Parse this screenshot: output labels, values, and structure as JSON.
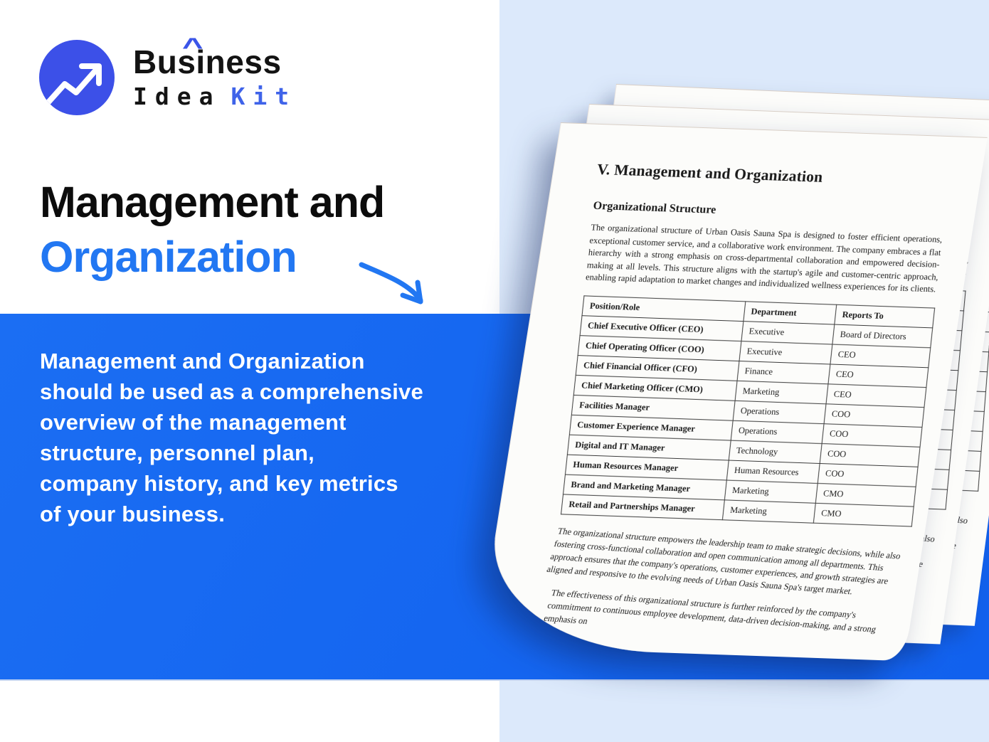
{
  "brand": {
    "logo_icon": "trending-up-arrow-icon",
    "name": "Business",
    "caret": "^",
    "line2_idea": "Idea",
    "line2_kit": "Kit"
  },
  "hero": {
    "title_line1": "Management and",
    "title_line2": "Organization",
    "arrow_icon": "curved-arrow-icon",
    "description": "Management and Organization\nshould be used as a comprehensive\noverview of the management\nstructure, personnel plan,\ncompany history, and key metrics\nof your business."
  },
  "document": {
    "title": "V. Management and Organization",
    "section_heading": "Organizational Structure",
    "intro_paragraph": "The organizational structure of Urban Oasis Sauna Spa is designed to foster efficient operations, exceptional customer service, and a collaborative work environment. The company embraces a flat hierarchy with a strong emphasis on cross-departmental collaboration and empowered decision-making at all levels. This structure aligns with the startup's agile and customer-centric approach, enabling rapid adaptation to market changes and individualized wellness experiences for its clients.",
    "table": {
      "headers": [
        "Position/Role",
        "Department",
        "Reports To"
      ],
      "rows": [
        [
          "Chief Executive Officer (CEO)",
          "Executive",
          "Board of Directors"
        ],
        [
          "Chief Operating Officer (COO)",
          "Executive",
          "CEO"
        ],
        [
          "Chief Financial Officer (CFO)",
          "Finance",
          "CEO"
        ],
        [
          "Chief Marketing Officer (CMO)",
          "Marketing",
          "CEO"
        ],
        [
          "Facilities Manager",
          "Operations",
          "COO"
        ],
        [
          "Customer Experience Manager",
          "Operations",
          "COO"
        ],
        [
          "Digital and IT Manager",
          "Technology",
          "COO"
        ],
        [
          "Human Resources Manager",
          "Human Resources",
          "COO"
        ],
        [
          "Brand and Marketing Manager",
          "Marketing",
          "CMO"
        ],
        [
          "Retail and Partnerships Manager",
          "Marketing",
          "CMO"
        ]
      ]
    },
    "outro_paragraph_1": "The organizational structure empowers the leadership team to make strategic decisions, while also fostering cross-functional collaboration and open communication among all departments. This approach ensures that the company's operations, customer experiences, and growth strategies are aligned and responsive to the evolving needs of Urban Oasis Sauna Spa's target market.",
    "outro_paragraph_2": "The effectiveness of this organizational structure is further reinforced by the company's commitment to continuous employee development, data-driven decision-making, and a strong emphasis on"
  },
  "colors": {
    "accent_blue": "#2277F2",
    "band_blue": "#1465F0",
    "logo_circle_blue": "#3C50E8",
    "kit_blue": "#3F63E9",
    "panel_light_blue": "#DCE9FB",
    "headline_black": "#0C0C0C",
    "paper_white": "#FCFCFA"
  }
}
